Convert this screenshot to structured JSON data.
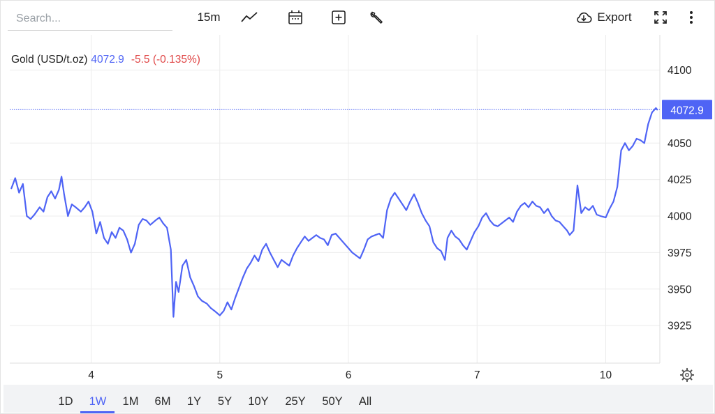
{
  "toolbar": {
    "search_placeholder": "Search...",
    "interval": "15m",
    "chart_type_icon": "line-chart-icon",
    "calendar_icon": "calendar-icon",
    "indicator_icon": "plus-square-icon",
    "settings_icon": "wrench-icon",
    "export_label": "Export",
    "export_icon": "cloud-download-icon",
    "fullscreen_icon": "fullscreen-icon",
    "more_icon": "more-vertical-icon"
  },
  "legend": {
    "label": "Gold (USD/t.oz)",
    "value": "4072.9",
    "change": "-5.5 (-0.135%)"
  },
  "last_price_label": "4072.9",
  "range_buttons": [
    "1D",
    "1W",
    "1M",
    "6M",
    "1Y",
    "5Y",
    "10Y",
    "25Y",
    "50Y",
    "All"
  ],
  "active_range": "1W",
  "colors": {
    "line": "#4f64f5",
    "negative": "#e04848",
    "grid": "#ececec"
  },
  "chart_data": {
    "type": "line",
    "title": "",
    "xlabel": "",
    "ylabel": "",
    "x_tick_labels": [
      "4",
      "5",
      "6",
      "7",
      "10"
    ],
    "y_tick_labels": [
      "3925",
      "3950",
      "3975",
      "4000",
      "4025",
      "4050",
      "4100"
    ],
    "ylim": [
      3900,
      4112
    ],
    "grid": true,
    "last_price": 4072.9,
    "series": [
      {
        "name": "Gold (USD/t.oz)",
        "points": [
          [
            3.38,
            4019
          ],
          [
            3.41,
            4026
          ],
          [
            3.44,
            4016
          ],
          [
            3.47,
            4022
          ],
          [
            3.5,
            4000
          ],
          [
            3.53,
            3998
          ],
          [
            3.56,
            4001
          ],
          [
            3.6,
            4006
          ],
          [
            3.63,
            4003
          ],
          [
            3.66,
            4013
          ],
          [
            3.69,
            4017
          ],
          [
            3.72,
            4012
          ],
          [
            3.75,
            4018
          ],
          [
            3.77,
            4027
          ],
          [
            3.79,
            4015
          ],
          [
            3.82,
            4000
          ],
          [
            3.85,
            4008
          ],
          [
            3.88,
            4006
          ],
          [
            3.92,
            4003
          ],
          [
            3.95,
            4006
          ],
          [
            3.98,
            4010
          ],
          [
            4.01,
            4003
          ],
          [
            4.04,
            3988
          ],
          [
            4.07,
            3996
          ],
          [
            4.1,
            3985
          ],
          [
            4.13,
            3981
          ],
          [
            4.16,
            3989
          ],
          [
            4.19,
            3985
          ],
          [
            4.22,
            3992
          ],
          [
            4.25,
            3990
          ],
          [
            4.28,
            3984
          ],
          [
            4.31,
            3975
          ],
          [
            4.34,
            3981
          ],
          [
            4.37,
            3994
          ],
          [
            4.4,
            3998
          ],
          [
            4.43,
            3997
          ],
          [
            4.46,
            3994
          ],
          [
            4.5,
            3997
          ],
          [
            4.53,
            3999
          ],
          [
            4.56,
            3995
          ],
          [
            4.59,
            3992
          ],
          [
            4.62,
            3977
          ],
          [
            4.64,
            3931
          ],
          [
            4.66,
            3955
          ],
          [
            4.68,
            3948
          ],
          [
            4.71,
            3966
          ],
          [
            4.74,
            3970
          ],
          [
            4.77,
            3958
          ],
          [
            4.8,
            3952
          ],
          [
            4.83,
            3945
          ],
          [
            4.86,
            3942
          ],
          [
            4.9,
            3940
          ],
          [
            4.93,
            3937
          ],
          [
            4.96,
            3935
          ],
          [
            5.0,
            3932
          ],
          [
            5.03,
            3935
          ],
          [
            5.06,
            3941
          ],
          [
            5.09,
            3936
          ],
          [
            5.12,
            3944
          ],
          [
            5.15,
            3951
          ],
          [
            5.18,
            3958
          ],
          [
            5.21,
            3964
          ],
          [
            5.24,
            3968
          ],
          [
            5.27,
            3973
          ],
          [
            5.3,
            3969
          ],
          [
            5.33,
            3977
          ],
          [
            5.36,
            3981
          ],
          [
            5.39,
            3975
          ],
          [
            5.42,
            3970
          ],
          [
            5.45,
            3965
          ],
          [
            5.48,
            3970
          ],
          [
            5.51,
            3968
          ],
          [
            5.54,
            3966
          ],
          [
            5.57,
            3973
          ],
          [
            5.6,
            3978
          ],
          [
            5.63,
            3982
          ],
          [
            5.66,
            3986
          ],
          [
            5.69,
            3983
          ],
          [
            5.72,
            3985
          ],
          [
            5.75,
            3987
          ],
          [
            5.78,
            3985
          ],
          [
            5.81,
            3984
          ],
          [
            5.84,
            3980
          ],
          [
            5.87,
            3987
          ],
          [
            5.9,
            3988
          ],
          [
            5.93,
            3985
          ],
          [
            5.96,
            3982
          ],
          [
            6.0,
            3978
          ],
          [
            6.03,
            3975
          ],
          [
            6.06,
            3973
          ],
          [
            6.09,
            3971
          ],
          [
            6.12,
            3977
          ],
          [
            6.15,
            3984
          ],
          [
            6.18,
            3986
          ],
          [
            6.21,
            3987
          ],
          [
            6.24,
            3988
          ],
          [
            6.27,
            3985
          ],
          [
            6.3,
            4004
          ],
          [
            6.33,
            4012
          ],
          [
            6.36,
            4016
          ],
          [
            6.39,
            4012
          ],
          [
            6.42,
            4008
          ],
          [
            6.45,
            4004
          ],
          [
            6.48,
            4010
          ],
          [
            6.51,
            4015
          ],
          [
            6.54,
            4009
          ],
          [
            6.57,
            4002
          ],
          [
            6.6,
            3997
          ],
          [
            6.63,
            3993
          ],
          [
            6.66,
            3982
          ],
          [
            6.69,
            3978
          ],
          [
            6.72,
            3976
          ],
          [
            6.75,
            3970
          ],
          [
            6.77,
            3985
          ],
          [
            6.8,
            3990
          ],
          [
            6.83,
            3986
          ],
          [
            6.86,
            3984
          ],
          [
            6.89,
            3980
          ],
          [
            6.92,
            3977
          ],
          [
            6.95,
            3983
          ],
          [
            6.98,
            3989
          ],
          [
            7.01,
            3993
          ],
          [
            7.04,
            3999
          ],
          [
            7.07,
            4002
          ],
          [
            7.1,
            3997
          ],
          [
            7.13,
            3994
          ],
          [
            7.16,
            3993
          ],
          [
            7.19,
            3995
          ],
          [
            7.22,
            3997
          ],
          [
            7.25,
            3999
          ],
          [
            7.28,
            3996
          ],
          [
            7.31,
            4003
          ],
          [
            7.34,
            4007
          ],
          [
            7.37,
            4009
          ],
          [
            7.4,
            4006
          ],
          [
            7.43,
            4010
          ],
          [
            7.46,
            4007
          ],
          [
            7.49,
            4006
          ],
          [
            7.52,
            4002
          ],
          [
            7.55,
            4005
          ],
          [
            7.58,
            4000
          ],
          [
            7.61,
            3997
          ],
          [
            7.64,
            3996
          ],
          [
            7.67,
            3993
          ],
          [
            7.7,
            3990
          ],
          [
            7.72,
            3987
          ],
          [
            7.75,
            3990
          ],
          [
            7.78,
            4021
          ],
          [
            7.81,
            4002
          ],
          [
            7.84,
            4006
          ],
          [
            7.87,
            4004
          ],
          [
            7.9,
            4007
          ],
          [
            7.93,
            4001
          ],
          [
            7.96,
            4000
          ],
          [
            8.0,
            3999
          ],
          [
            8.03,
            4005
          ],
          [
            8.06,
            4010
          ],
          [
            8.09,
            4020
          ],
          [
            8.12,
            4045
          ],
          [
            8.15,
            4050
          ],
          [
            8.18,
            4045
          ],
          [
            8.21,
            4048
          ],
          [
            8.24,
            4053
          ],
          [
            8.27,
            4052
          ],
          [
            8.3,
            4050
          ],
          [
            8.33,
            4063
          ],
          [
            8.36,
            4071
          ],
          [
            8.39,
            4074
          ],
          [
            8.4,
            4072.9
          ]
        ]
      }
    ]
  }
}
